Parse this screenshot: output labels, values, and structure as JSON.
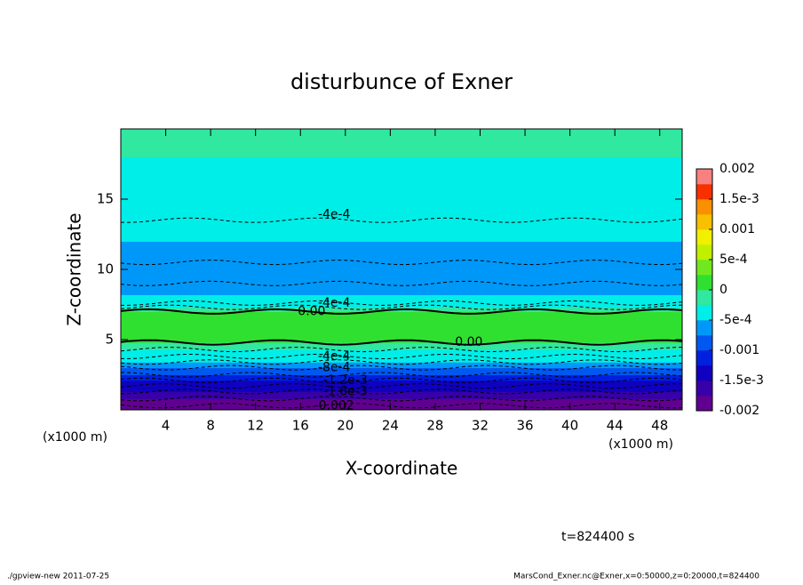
{
  "chart_data": {
    "type": "contour",
    "title": "disturbunce of Exner",
    "x_label": "X-coordinate",
    "y_label": "Z-coordinate",
    "x_unit": "(x1000 m)",
    "xlim": [
      0,
      50
    ],
    "xticks": [
      4,
      8,
      12,
      16,
      20,
      24,
      28,
      32,
      36,
      40,
      44,
      48
    ],
    "ylim": [
      0,
      20
    ],
    "yticks": [
      5,
      10,
      15
    ],
    "profile": {
      "z": [
        0,
        0.3,
        0.8,
        1.3,
        1.7,
        2.1,
        2.5,
        3.0,
        3.4,
        3.8,
        4.3,
        4.8,
        5.4,
        6,
        6.6,
        7,
        7.3,
        7.6,
        8.2,
        9,
        10.5,
        12,
        13.5,
        15.5,
        18,
        20
      ],
      "values": [
        -0.0021,
        -0.002,
        -0.0018,
        -0.0016,
        -0.0014,
        -0.0012,
        -0.001,
        -0.0008,
        -0.0006,
        -0.0004,
        -0.0002,
        0,
        0.00015,
        0.0002,
        0.0001,
        0,
        -0.0002,
        -0.0004,
        -0.0005,
        -0.0006,
        -0.0006,
        -0.0005,
        -0.0004,
        -0.0003,
        -0.00025,
        -0.0002
      ]
    },
    "contour_levels": [
      -0.002,
      -0.0018,
      -0.0016,
      -0.0014,
      -0.0012,
      -0.001,
      -0.0008,
      -0.0006,
      -0.0004,
      -0.0002,
      0
    ],
    "contour_labels": [
      {
        "label": "-4e-4",
        "x": 19,
        "z": 13.9
      },
      {
        "label": "-4e-4",
        "x": 19,
        "z": 7.6
      },
      {
        "label": "0.00",
        "x": 17,
        "z": 7.0
      },
      {
        "label": "0.00",
        "x": 31,
        "z": 4.8
      },
      {
        "label": "-4e-4",
        "x": 19,
        "z": 3.8
      },
      {
        "label": "-8e-4",
        "x": 19,
        "z": 3.0
      },
      {
        "label": "-1.2e-3",
        "x": 20,
        "z": 2.1
      },
      {
        "label": "-1.6e-3",
        "x": 20,
        "z": 1.3
      },
      {
        "label": "-0.002",
        "x": 19,
        "z": 0.3
      }
    ],
    "colorbar": {
      "lim": [
        -0.002,
        0.002
      ],
      "colors": [
        "#600090",
        "#3800a8",
        "#1000c0",
        "#0020e0",
        "#0058f0",
        "#0098f8",
        "#00eee8",
        "#30e8a0",
        "#30e030",
        "#70e820",
        "#c0f000",
        "#f0f000",
        "#f8c000",
        "#f89000",
        "#f83000",
        "#f88080"
      ],
      "ticks": [
        -0.002,
        {
          "value": -0.0015,
          "label": "-1.5e-3"
        },
        -0.001,
        {
          "value": -0.0005,
          "label": "-5e-4"
        },
        0,
        {
          "value": 0.0005,
          "label": "5e-4"
        },
        0.001,
        {
          "value": 0.0015,
          "label": "1.5e-3"
        },
        0.002
      ]
    },
    "time_label": "t=824400 s",
    "footer_left": "./gpview-new   2011-07-25",
    "footer_right": "MarsCond_Exner.nc@Exner,x=0:50000,z=0:20000,t=824400"
  }
}
